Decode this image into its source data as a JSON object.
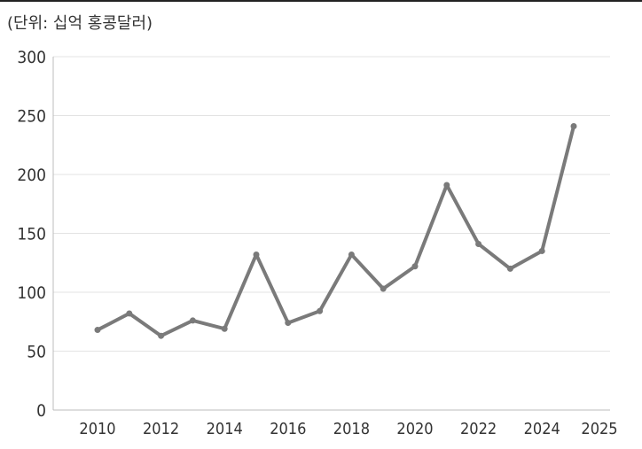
{
  "unit_label": "(단위: 십억 홍콩달러)",
  "colors": {
    "line": "#7a7a7a",
    "grid": "#e3e3e3",
    "axis": "#bdbdbd",
    "text": "#333333"
  },
  "chart_data": {
    "type": "line",
    "title": "",
    "xlabel": "",
    "ylabel": "",
    "ylim": [
      0,
      300
    ],
    "y_ticks": [
      0,
      50,
      100,
      150,
      200,
      250,
      300
    ],
    "x_tick_labels": [
      "2010",
      "2012",
      "2014",
      "2016",
      "2018",
      "2020",
      "2022",
      "2024",
      "2025"
    ],
    "grid": true,
    "legend": "none",
    "series": [
      {
        "x": [
          2010,
          2011,
          2012,
          2013,
          2014,
          2015,
          2016,
          2017,
          2018,
          2019,
          2020,
          2021,
          2022,
          2023,
          2024,
          2025
        ],
        "values": [
          68,
          82,
          63,
          76,
          69,
          132,
          74,
          84,
          132,
          103,
          122,
          191,
          141,
          120,
          135,
          241
        ]
      }
    ]
  }
}
